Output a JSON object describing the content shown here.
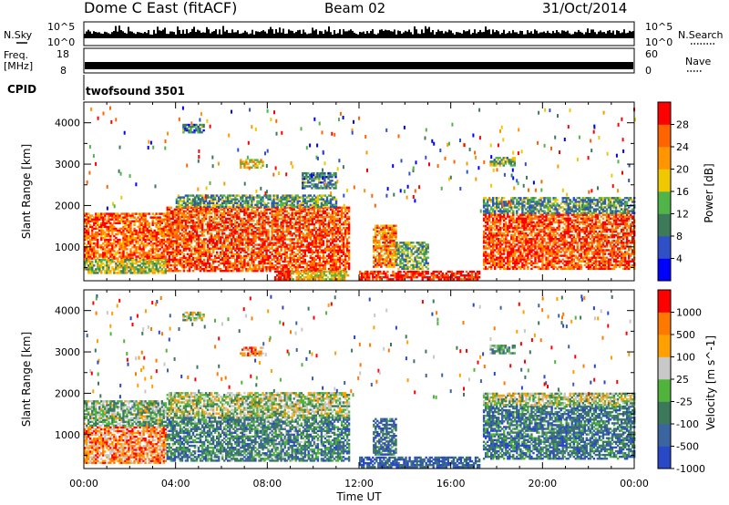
{
  "header": {
    "title": "Dome C East (fitACF)",
    "beam": "Beam 02",
    "date": "31/Oct/2014"
  },
  "top_panels": {
    "nsky_label": "N.Sky",
    "nsky_ticks": [
      "10^5",
      "10^0"
    ],
    "nsearch_label": "N.Search",
    "nsearch_ticks": [
      "10^5",
      "10^0"
    ],
    "freq_label": "Freq.",
    "freq_unit": "[MHz]",
    "freq_ticks": [
      "18",
      "8"
    ],
    "nave_label": "Nave",
    "nave_ticks": [
      "60",
      "0"
    ],
    "cpid_label": "CPID",
    "cpid_value": "twofsound 3501"
  },
  "chart_data": [
    {
      "type": "heatmap",
      "name": "power",
      "ylabel": "Slant Range [km]",
      "xlabel": "Time UT",
      "x_ticks": [
        "00:00",
        "04:00",
        "08:00",
        "12:00",
        "16:00",
        "20:00",
        "00:00"
      ],
      "xlim_hours": [
        0,
        24
      ],
      "y_ticks": [
        1000,
        2000,
        3000,
        4000
      ],
      "ylim": [
        180,
        4500
      ],
      "colorbar_label": "Power [dB]",
      "colorbar_ticks": [
        4,
        8,
        12,
        16,
        20,
        24,
        28
      ],
      "colorbar_colors": [
        "#0000ff",
        "#3050c8",
        "#3c7a5a",
        "#50b448",
        "#f0c800",
        "#ff9600",
        "#ff6400",
        "#ff0000"
      ],
      "regions": [
        {
          "t0": 0.0,
          "t1": 3.6,
          "r0": 700,
          "r1": 1800,
          "level": 0.8
        },
        {
          "t0": 0.0,
          "t1": 3.6,
          "r0": 350,
          "r1": 700,
          "level": 0.5
        },
        {
          "t0": 3.6,
          "t1": 11.6,
          "r0": 400,
          "r1": 1950,
          "level": 0.85
        },
        {
          "t0": 4.0,
          "t1": 11.0,
          "r0": 1950,
          "r1": 2250,
          "level": 0.35
        },
        {
          "t0": 8.3,
          "t1": 9.0,
          "r0": 200,
          "r1": 400,
          "level": 1.0
        },
        {
          "t0": 9.0,
          "t1": 11.5,
          "r0": 200,
          "r1": 420,
          "level": 0.6
        },
        {
          "t0": 12.6,
          "t1": 13.6,
          "r0": 500,
          "r1": 1500,
          "level": 0.75
        },
        {
          "t0": 12.0,
          "t1": 17.2,
          "r0": 200,
          "r1": 420,
          "level": 0.95
        },
        {
          "t0": 13.6,
          "t1": 15.0,
          "r0": 450,
          "r1": 1100,
          "level": 0.4
        },
        {
          "t0": 17.4,
          "t1": 24.0,
          "r0": 450,
          "r1": 1800,
          "level": 0.85
        },
        {
          "t0": 17.4,
          "t1": 24.0,
          "r0": 1800,
          "r1": 2200,
          "level": 0.35
        },
        {
          "t0": 4.3,
          "t1": 5.2,
          "r0": 3750,
          "r1": 3950,
          "level": 0.3
        },
        {
          "t0": 6.8,
          "t1": 7.8,
          "r0": 2900,
          "r1": 3100,
          "level": 0.6
        },
        {
          "t0": 17.7,
          "t1": 18.8,
          "r0": 2950,
          "r1": 3150,
          "level": 0.45
        },
        {
          "t0": 9.5,
          "t1": 11.0,
          "r0": 2400,
          "r1": 2800,
          "level": 0.3
        }
      ]
    },
    {
      "type": "heatmap",
      "name": "velocity",
      "ylabel": "Slant Range [km]",
      "xlabel": "Time UT",
      "x_ticks": [
        "00:00",
        "04:00",
        "08:00",
        "12:00",
        "16:00",
        "20:00",
        "00:00"
      ],
      "xlim_hours": [
        0,
        24
      ],
      "y_ticks": [
        1000,
        2000,
        3000,
        4000
      ],
      "ylim": [
        180,
        4500
      ],
      "colorbar_label": "Velocity [m s^-1]",
      "colorbar_ticks": [
        "1000",
        "500",
        "100",
        "25",
        "-25",
        "-100",
        "-500",
        "-1000"
      ],
      "colorbar_colors": [
        "#2848c8",
        "#3c64a0",
        "#3c785a",
        "#50b43c",
        "#c8c8c8",
        "#ffa000",
        "#ff7800",
        "#ff0000"
      ],
      "regions": [
        {
          "t0": 0.0,
          "t1": 3.6,
          "r0": 300,
          "r1": 1200,
          "level": 0.75
        },
        {
          "t0": 0.0,
          "t1": 3.6,
          "r0": 1200,
          "r1": 1800,
          "level": 0.45
        },
        {
          "t0": 3.6,
          "t1": 11.6,
          "r0": 1400,
          "r1": 2000,
          "level": 0.5
        },
        {
          "t0": 3.6,
          "t1": 11.6,
          "r0": 350,
          "r1": 1400,
          "level": 0.3
        },
        {
          "t0": 12.6,
          "t1": 13.6,
          "r0": 500,
          "r1": 1400,
          "level": 0.2
        },
        {
          "t0": 12.0,
          "t1": 17.2,
          "r0": 200,
          "r1": 450,
          "level": 0.15
        },
        {
          "t0": 17.4,
          "t1": 24.0,
          "r0": 400,
          "r1": 1700,
          "level": 0.25
        },
        {
          "t0": 17.4,
          "t1": 24.0,
          "r0": 1700,
          "r1": 2000,
          "level": 0.5
        },
        {
          "t0": 6.8,
          "t1": 7.8,
          "r0": 2900,
          "r1": 3100,
          "level": 0.75
        },
        {
          "t0": 4.3,
          "t1": 5.2,
          "r0": 3750,
          "r1": 3950,
          "level": 0.5
        },
        {
          "t0": 17.7,
          "t1": 18.8,
          "r0": 2950,
          "r1": 3150,
          "level": 0.4
        }
      ]
    }
  ]
}
